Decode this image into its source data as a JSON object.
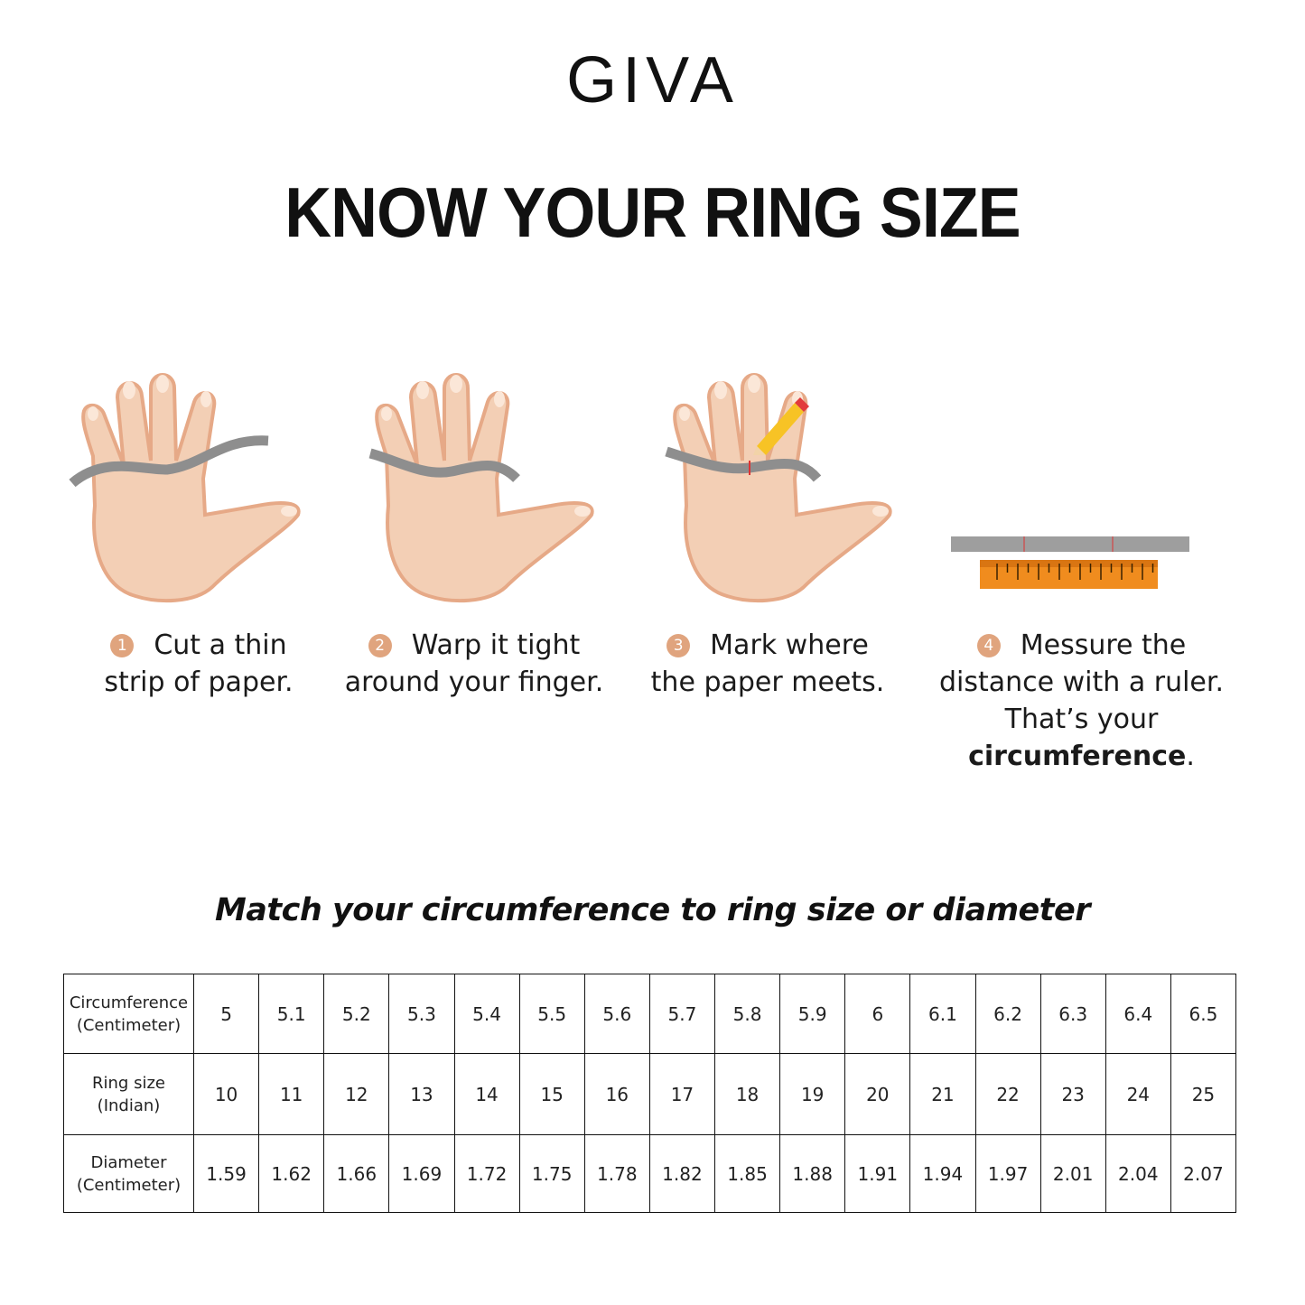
{
  "brand": "GIVA",
  "title": "KNOW YOUR RING SIZE",
  "steps": [
    {
      "number": "1",
      "line1": "Cut a thin",
      "line2": "strip of paper.",
      "line3": ""
    },
    {
      "number": "2",
      "line1": "Warp it tight",
      "line2": "around your finger.",
      "line3": ""
    },
    {
      "number": "3",
      "line1": "Mark where",
      "line2": "the paper meets.",
      "line3": ""
    },
    {
      "number": "4",
      "line1": "Messure the",
      "line2": "distance with a ruler.",
      "line3_prefix": "That’s your ",
      "line3_bold": "circumference",
      "line3_suffix": "."
    }
  ],
  "subtitle": "Match your circumference to ring size or diameter",
  "table": {
    "rows": [
      {
        "label1": "Circumference",
        "label2": "(Centimeter)",
        "values": [
          "5",
          "5.1",
          "5.2",
          "5.3",
          "5.4",
          "5.5",
          "5.6",
          "5.7",
          "5.8",
          "5.9",
          "6",
          "6.1",
          "6.2",
          "6.3",
          "6.4",
          "6.5"
        ]
      },
      {
        "label1": "Ring size",
        "label2": "(Indian)",
        "values": [
          "10",
          "11",
          "12",
          "13",
          "14",
          "15",
          "16",
          "17",
          "18",
          "19",
          "20",
          "21",
          "22",
          "23",
          "24",
          "25"
        ]
      },
      {
        "label1": "Diameter",
        "label2": "(Centimeter)",
        "values": [
          "1.59",
          "1.62",
          "1.66",
          "1.69",
          "1.72",
          "1.75",
          "1.78",
          "1.82",
          "1.85",
          "1.88",
          "1.91",
          "1.94",
          "1.97",
          "2.01",
          "2.04",
          "2.07"
        ]
      }
    ]
  },
  "colors": {
    "skin": "#f3cfb5",
    "skin_shadow": "#e6a987",
    "paper": "#9a9a9a",
    "ruler": "#f08c1e",
    "step_badge": "#e0a47e"
  }
}
